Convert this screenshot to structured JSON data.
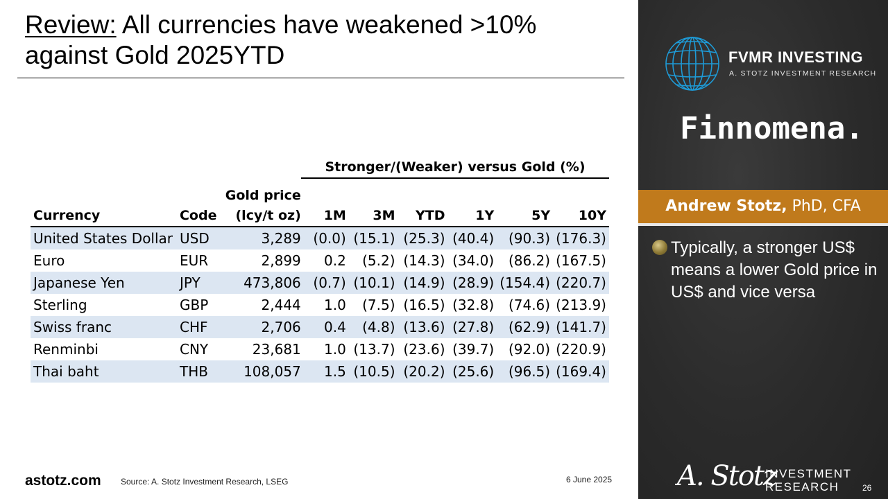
{
  "title": {
    "lead": "Review:",
    "rest": " All currencies have weakened >10% against Gold 2025YTD"
  },
  "table": {
    "group_header": "Stronger/(Weaker) versus Gold (%)",
    "columns": {
      "currency": "Currency",
      "code": "Code",
      "gold_line1": "Gold price",
      "gold_line2": "(lcy/t oz)",
      "m1": "1M",
      "m3": "3M",
      "ytd": "YTD",
      "y1": "1Y",
      "y5": "5Y",
      "y10": "10Y"
    },
    "rows": [
      {
        "currency": "United States Dollar",
        "code": "USD",
        "gold": "3,289",
        "m1": "(0.0)",
        "m3": "(15.1)",
        "ytd": "(25.3)",
        "y1": "(40.4)",
        "y5": "(90.3)",
        "y10": "(176.3)"
      },
      {
        "currency": "Euro",
        "code": "EUR",
        "gold": "2,899",
        "m1": "0.2",
        "m3": "(5.2)",
        "ytd": "(14.3)",
        "y1": "(34.0)",
        "y5": "(86.2)",
        "y10": "(167.5)"
      },
      {
        "currency": "Japanese Yen",
        "code": "JPY",
        "gold": "473,806",
        "m1": "(0.7)",
        "m3": "(10.1)",
        "ytd": "(14.9)",
        "y1": "(28.9)",
        "y5": "(154.4)",
        "y10": "(220.7)"
      },
      {
        "currency": "Sterling",
        "code": "GBP",
        "gold": "2,444",
        "m1": "1.0",
        "m3": "(7.5)",
        "ytd": "(16.5)",
        "y1": "(32.8)",
        "y5": "(74.6)",
        "y10": "(213.9)"
      },
      {
        "currency": "Swiss franc",
        "code": "CHF",
        "gold": "2,706",
        "m1": "0.4",
        "m3": "(4.8)",
        "ytd": "(13.6)",
        "y1": "(27.8)",
        "y5": "(62.9)",
        "y10": "(141.7)"
      },
      {
        "currency": "Renminbi",
        "code": "CNY",
        "gold": "23,681",
        "m1": "1.0",
        "m3": "(13.7)",
        "ytd": "(23.6)",
        "y1": "(39.7)",
        "y5": "(92.0)",
        "y10": "(220.9)"
      },
      {
        "currency": "Thai baht",
        "code": "THB",
        "gold": "108,057",
        "m1": "1.5",
        "m3": "(10.5)",
        "ytd": "(20.2)",
        "y1": "(25.6)",
        "y5": "(96.5)",
        "y10": "(169.4)"
      }
    ]
  },
  "footer": {
    "site": "astotz.com",
    "source": "Source: A. Stotz Investment Research, LSEG",
    "date": "6 June 2025"
  },
  "panel": {
    "logo_name": "FVMR INVESTING",
    "logo_sub": "A. STOTZ INVESTMENT RESEARCH",
    "partner": "Finnomena.",
    "presenter_name": "Andrew Stotz,",
    "presenter_cred": " PhD, CFA",
    "note": "Typically, a stronger US$ means a lower Gold price in US$ and vice versa",
    "signature": "A. Stotz",
    "brand_line1": "INVESTMENT",
    "brand_line2": "RESEARCH",
    "page_number": "26",
    "accent_color": "#c07a1c",
    "globe_color": "#1e9bd7"
  }
}
